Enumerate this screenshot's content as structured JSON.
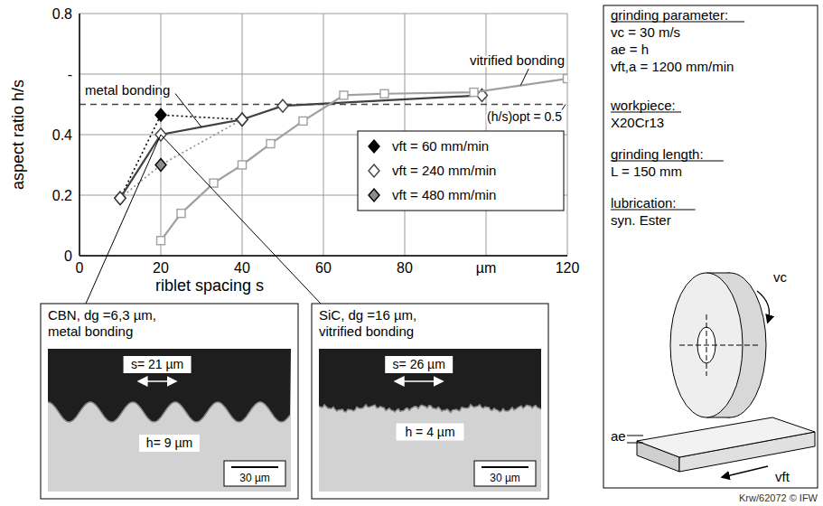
{
  "chart_data": {
    "type": "line",
    "x_label": "riblet spacing s",
    "y_label": "aspect ratio h/s",
    "xlim": [
      0,
      120
    ],
    "xticks": [
      0,
      20,
      40,
      60,
      80,
      {
        "value": 100,
        "label": "µm"
      },
      120
    ],
    "ylim": [
      0,
      0.8
    ],
    "yticks": [
      0,
      0.2,
      0.4,
      {
        "value": 0.6,
        "label": "-"
      },
      0.8
    ],
    "grid": true,
    "legend": "lower right",
    "series": [
      {
        "name": "vft = 60 mm/min",
        "color": "#000000",
        "marker": "diamond",
        "line_style": "dotted",
        "x": [
          10,
          20,
          40
        ],
        "values": [
          0.19,
          0.465,
          0.45
        ]
      },
      {
        "name": "vft = 240 mm/min",
        "color": "#404040",
        "marker": "open_diamond",
        "line_style": "solid",
        "x": [
          10,
          20,
          40,
          50,
          99
        ],
        "values": [
          0.19,
          0.4,
          0.45,
          0.495,
          0.53
        ]
      },
      {
        "name": "vft = 480 mm/min",
        "color": "#8c8c8c",
        "marker": "diamond",
        "line_style": "dotted",
        "x": [
          10,
          20,
          40
        ],
        "values": [
          0.19,
          0.3,
          0.45
        ]
      },
      {
        "name": "vitrified bonding",
        "color": "#a0a0a0",
        "marker": "open_square",
        "line_style": "solid",
        "x": [
          20,
          25,
          33,
          40,
          47,
          55,
          65,
          75,
          97,
          120
        ],
        "values": [
          0.05,
          0.14,
          0.24,
          0.3,
          0.37,
          0.445,
          0.53,
          0.535,
          0.54,
          0.585
        ]
      }
    ],
    "reference_line": {
      "y": 0.5,
      "label": "(h/s)opt = 0.5",
      "line_style": "dashed"
    },
    "annotations": [
      "metal bonding"
    ]
  },
  "insets": [
    {
      "title": [
        "CBN, dg =6,3 µm,",
        "metal bonding"
      ],
      "spacing_label": "s= 21 µm",
      "height_label": "h= 9 µm",
      "scale_bar": "30 µm"
    },
    {
      "title": [
        "SiC, dg =16 µm,",
        "vitrified bonding"
      ],
      "spacing_label": "s= 26 µm",
      "height_label": "h = 4 µm",
      "scale_bar": "30 µm"
    }
  ],
  "side_panel": {
    "groups": [
      {
        "heading": "grinding parameter:",
        "lines": [
          "vc = 30 m/s",
          "ae = h",
          "vft,a = 1200 mm/min"
        ]
      },
      {
        "heading": "workpiece:",
        "lines": [
          "X20Cr13"
        ]
      },
      {
        "heading": "grinding length:",
        "lines": [
          "L = 150 mm"
        ]
      },
      {
        "heading": "lubrication:",
        "lines": [
          "syn. Ester"
        ]
      }
    ],
    "diagram_labels": [
      "vc",
      "ae",
      "vft"
    ]
  },
  "footer": "Krw/62072 © IFW"
}
